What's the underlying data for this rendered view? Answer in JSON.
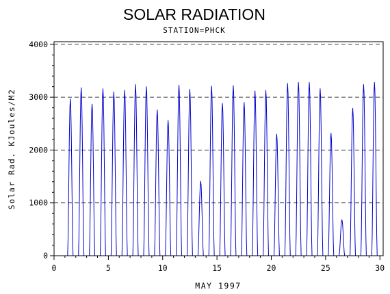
{
  "chart_data": {
    "type": "line",
    "title": "SOLAR RADIATION",
    "subtitle": "STATION=PHCK",
    "xlabel": "MAY 1997",
    "ylabel": "Solar Rad. KJoules/M2",
    "xlim": [
      0,
      30.3
    ],
    "ylim": [
      0,
      4050
    ],
    "x_ticks": [
      0,
      5,
      10,
      15,
      20,
      25,
      30
    ],
    "y_ticks": [
      0,
      1000,
      2000,
      3000,
      4000
    ],
    "y_reference_lines": [
      0,
      1000,
      2000,
      3000,
      4000
    ],
    "grid": "dashed horizontal reference lines at y ticks",
    "line_color": "#0000cc",
    "sampling": "hourly",
    "daily_peaks": [
      {
        "day": 1,
        "peak": 2970
      },
      {
        "day": 2,
        "peak": 3180
      },
      {
        "day": 3,
        "peak": 2870
      },
      {
        "day": 4,
        "peak": 3160
      },
      {
        "day": 5,
        "peak": 3100
      },
      {
        "day": 6,
        "peak": 3130
      },
      {
        "day": 7,
        "peak": 3240
      },
      {
        "day": 8,
        "peak": 3200
      },
      {
        "day": 9,
        "peak": 2760
      },
      {
        "day": 10,
        "peak": 2560
      },
      {
        "day": 11,
        "peak": 3230
      },
      {
        "day": 12,
        "peak": 3150
      },
      {
        "day": 13,
        "peak": 1410
      },
      {
        "day": 14,
        "peak": 3210
      },
      {
        "day": 15,
        "peak": 2880
      },
      {
        "day": 16,
        "peak": 3220
      },
      {
        "day": 17,
        "peak": 2900
      },
      {
        "day": 18,
        "peak": 3120
      },
      {
        "day": 19,
        "peak": 3130
      },
      {
        "day": 20,
        "peak": 2300
      },
      {
        "day": 21,
        "peak": 3260
      },
      {
        "day": 22,
        "peak": 3280
      },
      {
        "day": 23,
        "peak": 3280
      },
      {
        "day": 24,
        "peak": 3160
      },
      {
        "day": 25,
        "peak": 2320
      },
      {
        "day": 26,
        "peak": 680
      },
      {
        "day": 27,
        "peak": 2790
      },
      {
        "day": 28,
        "peak": 3240
      },
      {
        "day": 29,
        "peak": 3280
      }
    ]
  }
}
